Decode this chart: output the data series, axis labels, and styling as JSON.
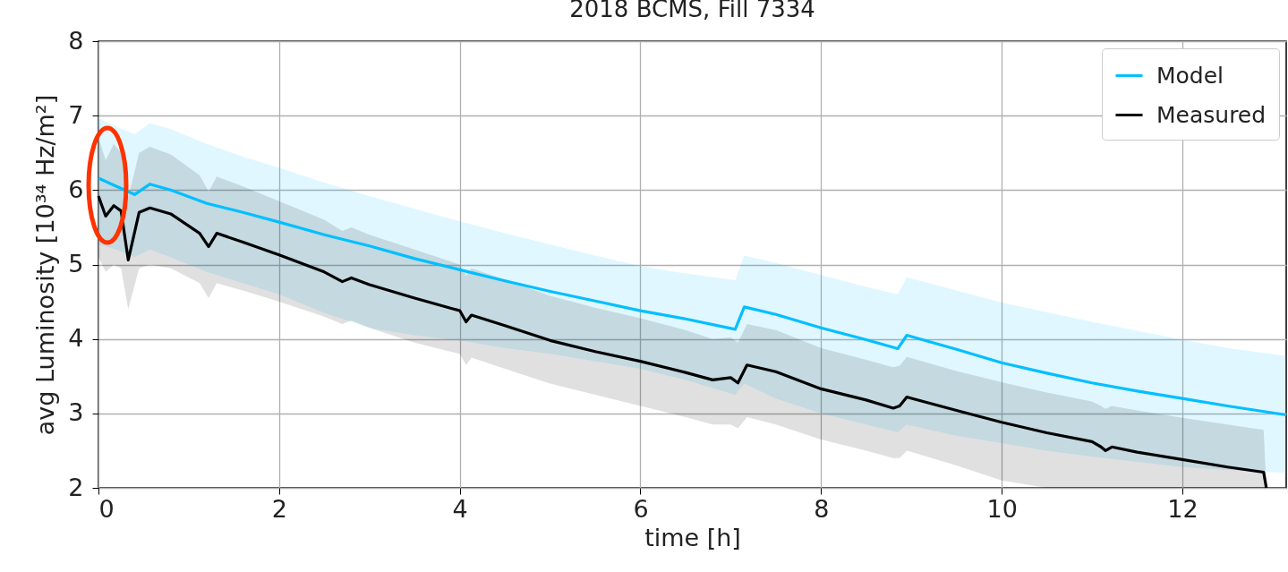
{
  "chart_data": {
    "type": "line",
    "title": "2018 BCMS, Fill 7334",
    "xlabel": "time [h]",
    "ylabel": "avg Luminosity [10³⁴ Hz/m²]",
    "xlim": [
      0,
      13.15
    ],
    "xticks": [
      0,
      2,
      4,
      6,
      8,
      10,
      12
    ],
    "ylim": [
      2,
      8
    ],
    "yticks": [
      2,
      3,
      4,
      5,
      6,
      7,
      8
    ],
    "grid": true,
    "legend": "top right",
    "line_style": "solid",
    "marker": "none",
    "series": [
      {
        "name": "Model",
        "color": "#00bfff",
        "x": [
          0,
          0.2,
          0.4,
          0.57,
          0.8,
          1.2,
          1.6,
          2,
          2.5,
          3,
          3.5,
          4,
          4.5,
          5,
          5.5,
          6,
          6.5,
          7.05,
          7.15,
          7.5,
          8,
          8.5,
          8.85,
          8.95,
          9.5,
          10,
          10.5,
          11,
          11.5,
          12,
          12.5,
          13.15
        ],
        "values": [
          6.16,
          6.05,
          5.94,
          6.08,
          6.0,
          5.82,
          5.7,
          5.57,
          5.4,
          5.25,
          5.08,
          4.93,
          4.78,
          4.64,
          4.51,
          4.38,
          4.27,
          4.13,
          4.43,
          4.33,
          4.15,
          3.99,
          3.87,
          4.05,
          3.86,
          3.68,
          3.54,
          3.41,
          3.3,
          3.2,
          3.1,
          2.98
        ],
        "upper": [
          6.97,
          6.85,
          6.75,
          6.9,
          6.82,
          6.62,
          6.45,
          6.3,
          6.1,
          5.92,
          5.75,
          5.58,
          5.42,
          5.27,
          5.12,
          4.98,
          4.88,
          4.79,
          5.12,
          5.02,
          4.86,
          4.7,
          4.6,
          4.83,
          4.65,
          4.49,
          4.36,
          4.23,
          4.11,
          3.99,
          3.88,
          3.77
        ],
        "lower": [
          5.27,
          5.2,
          5.1,
          5.2,
          5.1,
          4.9,
          4.75,
          4.6,
          4.35,
          4.15,
          4.05,
          3.98,
          3.88,
          3.8,
          3.7,
          3.6,
          3.45,
          3.25,
          3.4,
          3.2,
          3.0,
          2.85,
          2.75,
          2.85,
          2.7,
          2.6,
          2.5,
          2.42,
          2.35,
          2.28,
          2.24,
          2.2
        ]
      },
      {
        "name": "Measured",
        "color": "#000000",
        "x": [
          0,
          0.08,
          0.17,
          0.25,
          0.33,
          0.45,
          0.57,
          0.8,
          1.12,
          1.22,
          1.31,
          1.6,
          2,
          2.5,
          2.7,
          2.8,
          3,
          3.5,
          4,
          4.07,
          4.13,
          4.5,
          5,
          5.5,
          6,
          6.5,
          6.8,
          7.0,
          7.08,
          7.18,
          7.5,
          8,
          8.5,
          8.8,
          8.87,
          8.95,
          9.5,
          10,
          10.5,
          11,
          11.1,
          11.15,
          11.22,
          11.5,
          12,
          12.5,
          12.9,
          12.93
        ],
        "values": [
          5.92,
          5.65,
          5.79,
          5.72,
          5.06,
          5.7,
          5.76,
          5.68,
          5.42,
          5.24,
          5.42,
          5.3,
          5.13,
          4.9,
          4.77,
          4.82,
          4.73,
          4.55,
          4.38,
          4.23,
          4.32,
          4.18,
          3.98,
          3.83,
          3.7,
          3.55,
          3.45,
          3.48,
          3.41,
          3.65,
          3.56,
          3.33,
          3.18,
          3.07,
          3.1,
          3.22,
          3.04,
          2.88,
          2.74,
          2.62,
          2.55,
          2.5,
          2.55,
          2.48,
          2.38,
          2.28,
          2.21,
          2.0
        ],
        "upper": [
          6.7,
          6.4,
          6.62,
          6.5,
          5.9,
          6.5,
          6.58,
          6.48,
          6.2,
          5.98,
          6.18,
          6.05,
          5.85,
          5.6,
          5.45,
          5.5,
          5.4,
          5.2,
          5.0,
          4.85,
          4.95,
          4.8,
          4.58,
          4.42,
          4.28,
          4.12,
          4.0,
          4.02,
          3.95,
          4.2,
          4.12,
          3.88,
          3.72,
          3.62,
          3.64,
          3.76,
          3.57,
          3.42,
          3.28,
          3.16,
          3.1,
          3.06,
          3.1,
          3.04,
          2.94,
          2.85,
          2.78,
          2.0
        ],
        "lower": [
          5.1,
          4.9,
          5.0,
          4.95,
          4.4,
          4.95,
          5.0,
          4.95,
          4.75,
          4.55,
          4.75,
          4.65,
          4.5,
          4.3,
          4.2,
          4.25,
          4.15,
          3.95,
          3.8,
          3.65,
          3.75,
          3.6,
          3.4,
          3.25,
          3.1,
          2.95,
          2.85,
          2.85,
          2.8,
          2.95,
          2.85,
          2.65,
          2.5,
          2.4,
          2.4,
          2.5,
          2.3,
          2.1,
          2.0,
          2.0,
          2.0,
          2.0,
          2.0,
          2.0,
          2.0,
          2.0,
          2.0,
          2.0
        ]
      }
    ]
  }
}
